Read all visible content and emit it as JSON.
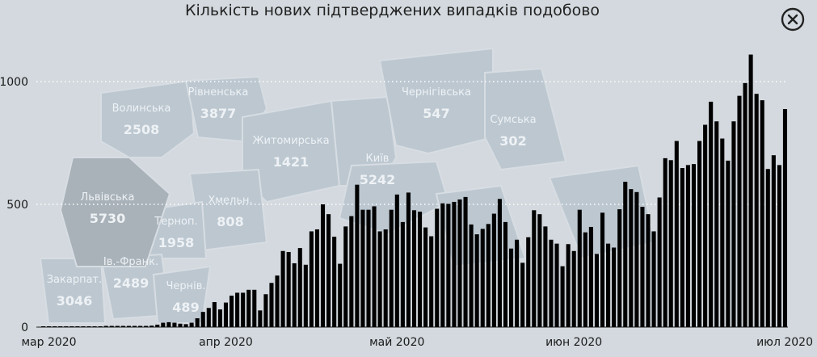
{
  "close_icon": "close-circle-icon",
  "map": {
    "regions": [
      {
        "name": "Волинська",
        "value": "2508"
      },
      {
        "name": "Рівненська",
        "value": "3877"
      },
      {
        "name": "Житомирська",
        "value": "1421"
      },
      {
        "name": "Київ",
        "value": "5242"
      },
      {
        "name": "Чернігівська",
        "value": "547"
      },
      {
        "name": "Сумська",
        "value": "302"
      },
      {
        "name": "Львівська",
        "value": "5730"
      },
      {
        "name": "Терноп.",
        "value": "1958"
      },
      {
        "name": "Хмельн.",
        "value": "808"
      },
      {
        "name": "Ів.-Франк.",
        "value": "2489"
      },
      {
        "name": "Закарпат.",
        "value": "3046"
      },
      {
        "name": "Чернів.",
        "value": "489"
      }
    ]
  },
  "chart_data": {
    "type": "bar",
    "title": "Кількість нових підтверджених випадків подобово",
    "xlabel": "",
    "ylabel": "",
    "x_start": "2020-03-01",
    "x_ticks": [
      "мар 2020",
      "апр 2020",
      "май 2020",
      "июн 2020",
      "июл 2020"
    ],
    "y_ticks": [
      "0",
      "500",
      "1000"
    ],
    "ylim": [
      0,
      1150
    ],
    "grid": true,
    "bar_color": "#000000",
    "values": [
      0,
      0,
      0,
      0,
      0,
      0,
      0,
      0,
      0,
      0,
      0,
      2,
      1,
      2,
      3,
      3,
      2,
      4,
      3,
      6,
      10,
      18,
      20,
      18,
      14,
      12,
      18,
      36,
      62,
      78,
      102,
      72,
      100,
      128,
      140,
      140,
      152,
      152,
      68,
      134,
      180,
      210,
      310,
      306,
      260,
      322,
      254,
      390,
      398,
      500,
      460,
      368,
      258,
      410,
      452,
      580,
      478,
      478,
      492,
      390,
      398,
      478,
      540,
      428,
      548,
      476,
      470,
      406,
      370,
      482,
      504,
      502,
      510,
      520,
      530,
      418,
      378,
      400,
      420,
      462,
      522,
      428,
      320,
      356,
      262,
      366,
      476,
      460,
      410,
      356,
      340,
      248,
      338,
      310,
      478,
      386,
      408,
      298,
      466,
      340,
      324,
      480,
      592,
      562,
      550,
      490,
      460,
      390,
      528,
      688,
      680,
      758,
      648,
      660,
      664,
      758,
      824,
      918,
      838,
      768,
      678,
      838,
      942,
      994,
      1110,
      950,
      924,
      644,
      700,
      660,
      888
    ]
  }
}
